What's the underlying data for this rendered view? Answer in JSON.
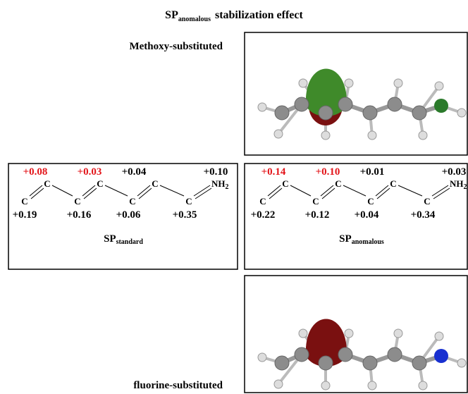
{
  "header": {
    "title_main": "SP",
    "title_sub": "anomalous",
    "title_rest": "stabilization effect"
  },
  "labels": {
    "top": "Methoxy-substituted",
    "bottom": "fluorine-substituted"
  },
  "schemes": [
    {
      "top_charges": [
        "+0.08",
        "+0.03",
        "+0.04",
        "+0.10"
      ],
      "bottom_charges": [
        "+0.19",
        "+0.16",
        "+0.06",
        "+0.35"
      ],
      "atoms": [
        "C",
        "C",
        "C",
        "C",
        "C",
        "C",
        "C"
      ],
      "amine_main": "NH",
      "amine_sub": "2",
      "name_main": "SP",
      "name_sub": "standard"
    },
    {
      "top_charges": [
        "+0.14",
        "+0.10",
        "+0.01",
        "+0.03"
      ],
      "bottom_charges": [
        "+0.22",
        "+0.12",
        "+0.04",
        "+0.34"
      ],
      "atoms": [
        "C",
        "C",
        "C",
        "C",
        "C",
        "C",
        "C"
      ],
      "amine_main": "NH",
      "amine_sub": "2",
      "name_main": "SP",
      "name_sub": "anomalous"
    }
  ]
}
